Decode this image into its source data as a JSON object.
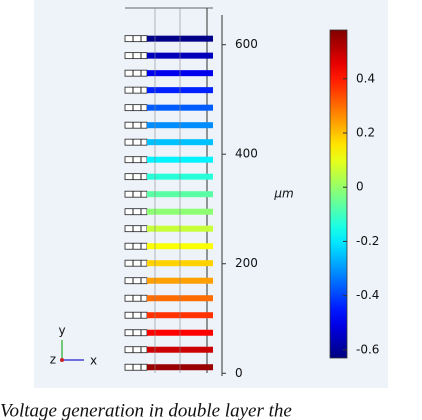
{
  "chart_data": {
    "type": "layer-stack",
    "y_label": "μm",
    "y": [
      11,
      43,
      74,
      106,
      137,
      169,
      201,
      232,
      264,
      295,
      327,
      359,
      390,
      422,
      453,
      485,
      517,
      548,
      580,
      611
    ],
    "values": [
      0.55,
      0.49,
      0.43,
      0.37,
      0.3,
      0.24,
      0.18,
      0.12,
      0.06,
      -0.01,
      -0.07,
      -0.13,
      -0.19,
      -0.25,
      -0.31,
      -0.37,
      -0.44,
      -0.5,
      -0.56,
      -0.62
    ],
    "ylim": [
      -5,
      667
    ],
    "yticks": [
      0,
      200,
      400,
      600
    ],
    "colormap": "jet",
    "clim": [
      -0.63,
      0.58
    ],
    "cticks": [
      -0.6,
      -0.4,
      -0.2,
      0,
      0.2,
      0.4
    ],
    "axis_triad": [
      "y",
      "z",
      "x"
    ],
    "caption": "Voltage generation in double layer the"
  }
}
